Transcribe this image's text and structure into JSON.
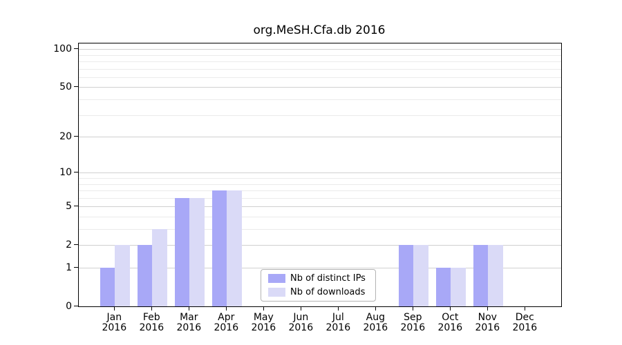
{
  "chart_data": {
    "type": "bar",
    "title": "org.MeSH.Cfa.db 2016",
    "categories": [
      "Jan",
      "Feb",
      "Mar",
      "Apr",
      "May",
      "Jun",
      "Jul",
      "Aug",
      "Sep",
      "Oct",
      "Nov",
      "Dec"
    ],
    "year": "2016",
    "series": [
      {
        "name": "Nb of distinct IPs",
        "color": "#a8a8f7",
        "values": [
          1,
          2,
          6,
          7,
          0,
          0,
          0,
          0,
          2,
          1,
          2,
          0
        ]
      },
      {
        "name": "Nb of downloads",
        "color": "#dadaf7",
        "values": [
          2,
          3,
          6,
          7,
          0,
          0,
          0,
          0,
          2,
          1,
          2,
          0
        ]
      }
    ],
    "xlabel": "",
    "ylabel": "",
    "yscale": "log10(1+v)",
    "ylim": [
      0,
      111
    ],
    "y_major_ticks": [
      0,
      1,
      2,
      5,
      10,
      20,
      50,
      100
    ],
    "y_minor_ticks": [
      3,
      4,
      6,
      7,
      8,
      9,
      30,
      40,
      60,
      70,
      80,
      90
    ],
    "grid": true,
    "legend_position": "inside lower-center"
  },
  "colors": {
    "background": "#ffffff",
    "axis": "#000000",
    "major_grid": "#d0d0d0",
    "minor_grid": "#ebebeb",
    "text": "#000000",
    "legend_border": "#b3b3b3",
    "bar_distinct_ips": "#a8a8f7",
    "bar_downloads": "#dadaf7"
  }
}
